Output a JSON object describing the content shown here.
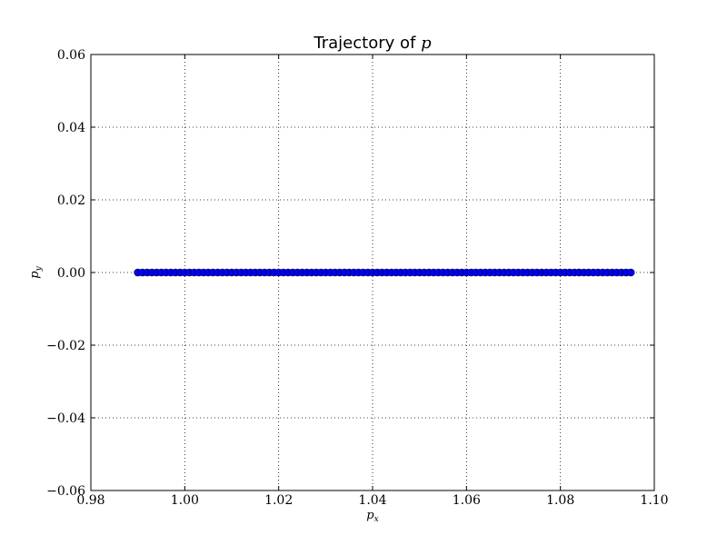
{
  "chart_data": {
    "type": "scatter",
    "title": "Trajectory of",
    "title_symbol": "p",
    "xlabel": "p_x",
    "ylabel": "p_y",
    "xlim": [
      0.98,
      1.1
    ],
    "ylim": [
      -0.06,
      0.06
    ],
    "grid": true,
    "x_ticks": [
      "0.98",
      "1.00",
      "1.02",
      "1.04",
      "1.06",
      "1.08",
      "1.10"
    ],
    "y_ticks": [
      "−0.06",
      "−0.04",
      "−0.02",
      "0.00",
      "0.02",
      "0.04",
      "0.06"
    ],
    "x_tick_values": [
      0.98,
      1.0,
      1.02,
      1.04,
      1.06,
      1.08,
      1.1
    ],
    "y_tick_values": [
      -0.06,
      -0.04,
      -0.02,
      0.0,
      0.02,
      0.04,
      0.06
    ],
    "series": [
      {
        "color": "#0000ff",
        "marker": "circle",
        "x_start": 0.99,
        "x_end": 1.095,
        "x_step": 0.001,
        "y": 0.0
      }
    ]
  }
}
